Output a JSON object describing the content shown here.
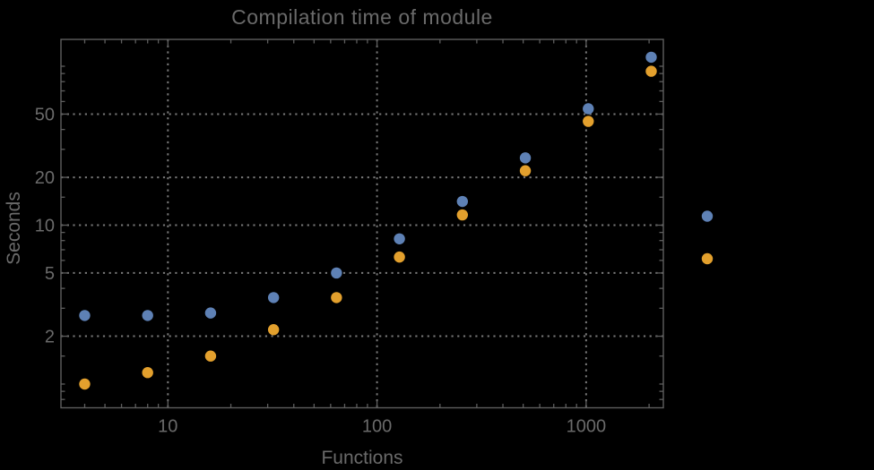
{
  "chart_data": {
    "type": "scatter",
    "title": "Compilation time of module",
    "xlabel": "Functions",
    "ylabel": "Seconds",
    "x_scale": "log",
    "y_scale": "log",
    "x_range": [
      3.08,
      2340
    ],
    "y_range": [
      0.709,
      147.6
    ],
    "x_ticks": [
      10,
      100,
      1000
    ],
    "y_ticks": [
      2,
      5,
      10,
      20,
      50
    ],
    "grid": "dotted lines at labeled major ticks only",
    "legend_position": "outside-right, color markers only (no visible label text)",
    "x": [
      4,
      8,
      16,
      32,
      64,
      128,
      256,
      512,
      1024,
      2048
    ],
    "series": [
      {
        "name": "series-1-blue",
        "color": "#5e81b5",
        "values": [
          2.7,
          2.7,
          2.8,
          3.5,
          5.0,
          8.2,
          14.1,
          26.5,
          54,
          114
        ]
      },
      {
        "name": "series-2-orange",
        "color": "#e3a02d",
        "values": [
          1.0,
          1.18,
          1.5,
          2.2,
          3.5,
          6.3,
          11.6,
          22,
          45,
          93
        ]
      }
    ],
    "legend": {
      "items": [
        {
          "marker": "disk",
          "series": "series-1-blue"
        },
        {
          "marker": "disk",
          "series": "series-2-orange"
        }
      ]
    }
  },
  "colors": {
    "background": "#000000",
    "frame": "#5e5e5e",
    "grid": "#787878",
    "text": "#6a6a6a"
  }
}
